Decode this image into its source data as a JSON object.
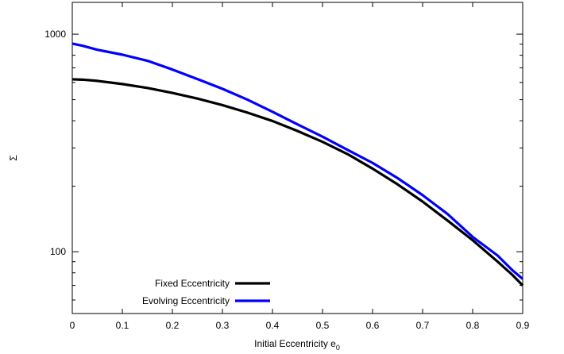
{
  "chart_data": {
    "type": "line",
    "title": "",
    "xlabel": "Initial Eccentricity e",
    "xlabel_subscript": "0",
    "ylabel": "Σ",
    "xlim": [
      0,
      0.9
    ],
    "ylim": [
      52,
      1400
    ],
    "yscale": "log",
    "x_ticks": [
      0,
      0.1,
      0.2,
      0.3,
      0.4,
      0.5,
      0.6,
      0.7,
      0.8,
      0.9
    ],
    "x_tick_labels": [
      "0",
      "0.1",
      "0.2",
      "0.3",
      "0.4",
      "0.5",
      "0.6",
      "0.7",
      "0.8",
      "0.9"
    ],
    "y_ticks": [
      100,
      1000
    ],
    "y_tick_labels": [
      "100",
      "1000"
    ],
    "grid": false,
    "legend_position": "bottom-left",
    "series": [
      {
        "name": "Fixed Eccentricity",
        "color": "#000000",
        "x": [
          0,
          0.02,
          0.05,
          0.1,
          0.15,
          0.2,
          0.25,
          0.3,
          0.35,
          0.4,
          0.45,
          0.5,
          0.55,
          0.6,
          0.65,
          0.7,
          0.75,
          0.8,
          0.85,
          0.88,
          0.9
        ],
        "y": [
          620,
          618,
          610,
          590,
          566,
          537,
          506,
          472,
          436,
          399,
          359,
          320,
          281,
          241,
          204,
          170,
          139,
          113,
          90,
          78,
          70
        ]
      },
      {
        "name": "Evolving Eccentricity",
        "color": "#0000ff",
        "x": [
          0,
          0.02,
          0.05,
          0.1,
          0.15,
          0.2,
          0.25,
          0.3,
          0.35,
          0.4,
          0.45,
          0.5,
          0.55,
          0.6,
          0.65,
          0.7,
          0.75,
          0.8,
          0.85,
          0.88,
          0.9
        ],
        "y": [
          905,
          885,
          848,
          805,
          755,
          688,
          622,
          561,
          500,
          440,
          385,
          338,
          294,
          256,
          218,
          182,
          149,
          117,
          96,
          82,
          75
        ]
      }
    ]
  }
}
